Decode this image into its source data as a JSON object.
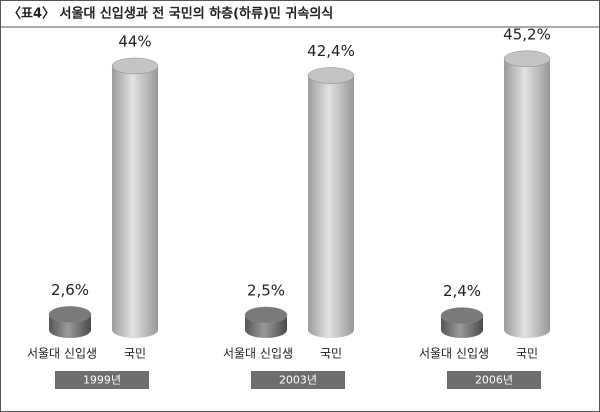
{
  "chart_data": {
    "type": "bar",
    "title": "〈표4〉 서울대 신입생과 전 국민의 하층(하류)민 귀속의식",
    "categories": [
      "1999년",
      "2003년",
      "2006년"
    ],
    "series": [
      {
        "name": "서울대 신입생",
        "color": "#7a7a7a",
        "values": [
          2.6,
          2.5,
          2.4
        ],
        "value_labels": [
          "2,6%",
          "2,5%",
          "2,4%"
        ]
      },
      {
        "name": "국민",
        "color": "#c4c4c4",
        "values": [
          44,
          42.4,
          45.2
        ],
        "value_labels": [
          "44%",
          "42,4%",
          "45,2%"
        ]
      }
    ]
  }
}
